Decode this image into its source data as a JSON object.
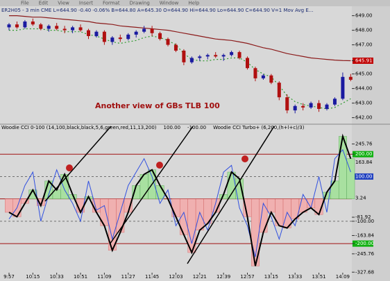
{
  "menu": [
    "File",
    "Edit",
    "View",
    "Insert",
    "Format",
    "Drawing",
    "Window",
    "Help"
  ],
  "chart_data": [
    {
      "type": "candlestick",
      "header": "ER2H05 - 3 min  CME  L=644.90  -0.40  -0.06%  B=644.80  A=645.30  O=644.90  Hi=644.90  Lo=644.90  C=644.90  V=1   Mov Avg E...",
      "annotation": "Another view of GBs TLB 100",
      "up_color": "#1a1aa0",
      "down_color": "#b01010",
      "ylim": [
        641.6,
        649.6
      ],
      "yticks": [
        {
          "value": 649,
          "label": "649.00"
        },
        {
          "value": 648,
          "label": "648.00"
        },
        {
          "value": 647,
          "label": "647.00"
        },
        {
          "value": 645.91,
          "label": "645.91",
          "highlight": "#c00000"
        },
        {
          "value": 645,
          "label": "645.00"
        },
        {
          "value": 644,
          "label": "644.00"
        },
        {
          "value": 643,
          "label": "643.00"
        },
        {
          "value": 642,
          "label": "642.00"
        }
      ],
      "ohlc": [
        [
          648.2,
          648.5,
          648.0,
          648.4
        ],
        [
          648.4,
          648.6,
          648.1,
          648.2
        ],
        [
          648.2,
          648.7,
          648.1,
          648.6
        ],
        [
          648.6,
          648.8,
          648.3,
          648.4
        ],
        [
          648.4,
          648.5,
          648.0,
          648.1
        ],
        [
          648.1,
          648.4,
          647.9,
          648.3
        ],
        [
          648.3,
          648.5,
          648.0,
          648.1
        ],
        [
          648.1,
          648.3,
          647.8,
          648.0
        ],
        [
          648.0,
          648.3,
          647.8,
          648.2
        ],
        [
          648.2,
          648.4,
          647.9,
          648.0
        ],
        [
          648.0,
          648.1,
          647.4,
          647.6
        ],
        [
          647.6,
          648.0,
          647.5,
          647.9
        ],
        [
          647.9,
          648.0,
          647.0,
          647.2
        ],
        [
          647.2,
          647.6,
          647.0,
          647.5
        ],
        [
          647.5,
          647.7,
          647.2,
          647.4
        ],
        [
          647.4,
          647.8,
          647.3,
          647.7
        ],
        [
          647.7,
          648.0,
          647.5,
          647.9
        ],
        [
          647.9,
          648.3,
          647.8,
          648.1
        ],
        [
          648.1,
          648.3,
          647.6,
          647.8
        ],
        [
          647.8,
          647.9,
          647.3,
          647.4
        ],
        [
          647.4,
          647.5,
          646.9,
          647.0
        ],
        [
          647.0,
          647.1,
          646.5,
          646.6
        ],
        [
          646.6,
          646.7,
          645.6,
          645.8
        ],
        [
          645.8,
          646.2,
          645.7,
          646.1
        ],
        [
          646.1,
          646.3,
          645.9,
          646.2
        ],
        [
          646.2,
          646.4,
          646.0,
          646.3
        ],
        [
          646.3,
          646.5,
          646.1,
          646.2
        ],
        [
          646.2,
          646.4,
          645.9,
          646.3
        ],
        [
          646.3,
          646.6,
          646.2,
          646.5
        ],
        [
          646.5,
          646.6,
          646.0,
          646.1
        ],
        [
          646.1,
          646.2,
          645.3,
          645.4
        ],
        [
          645.4,
          645.5,
          644.5,
          644.7
        ],
        [
          644.7,
          645.0,
          644.6,
          644.9
        ],
        [
          644.9,
          645.0,
          644.3,
          644.4
        ],
        [
          644.4,
          644.5,
          643.2,
          643.4
        ],
        [
          643.4,
          643.6,
          642.3,
          642.5
        ],
        [
          642.5,
          642.9,
          642.3,
          642.8
        ],
        [
          642.8,
          643.0,
          642.5,
          642.7
        ],
        [
          642.7,
          643.1,
          642.6,
          643.0
        ],
        [
          643.0,
          643.2,
          642.4,
          642.6
        ],
        [
          642.6,
          643.0,
          642.5,
          642.9
        ],
        [
          642.9,
          643.4,
          642.8,
          643.3
        ],
        [
          643.3,
          645.1,
          643.2,
          644.8
        ],
        [
          644.8,
          645.0,
          644.5,
          644.6
        ]
      ],
      "lines": [
        {
          "color": "#8b1a1a",
          "dash": "",
          "values": [
            649.0,
            649.0,
            648.95,
            648.9,
            648.9,
            648.85,
            648.8,
            648.75,
            648.7,
            648.65,
            648.6,
            648.5,
            648.45,
            648.4,
            648.3,
            648.25,
            648.2,
            648.15,
            648.1,
            648.05,
            648.0,
            647.9,
            647.8,
            647.7,
            647.6,
            647.5,
            647.4,
            647.35,
            647.3,
            647.2,
            647.1,
            646.95,
            646.8,
            646.7,
            646.55,
            646.4,
            646.3,
            646.2,
            646.1,
            646.05,
            646.0,
            645.95,
            645.92,
            645.91
          ]
        },
        {
          "color": "#2e9a2e",
          "dash": "2 3",
          "values": [
            648.0,
            648.0,
            648.1,
            648.1,
            648.1,
            648.0,
            648.0,
            647.9,
            647.9,
            647.9,
            647.7,
            647.6,
            647.4,
            647.2,
            647.1,
            647.2,
            647.3,
            647.5,
            647.6,
            647.5,
            647.3,
            647.0,
            646.4,
            646.0,
            645.9,
            645.9,
            646.0,
            646.0,
            646.1,
            646.1,
            645.8,
            645.3,
            645.0,
            644.8,
            644.2,
            643.5,
            643.1,
            642.9,
            642.8,
            642.7,
            642.6,
            642.7,
            643.0,
            643.3
          ]
        }
      ]
    },
    {
      "type": "line",
      "header": [
        {
          "text": "Woodie CCI 0-100  (14,100,black,black,5,6,green,red,11,13,200)",
          "color": "#000000"
        },
        {
          "text": "100.00",
          "color": "#000000"
        },
        {
          "text": "-100.00",
          "color": "#000000"
        },
        {
          "text": "Woodie CCI Turbo+  (6,200,(h+l+c)/3)",
          "color": "#000000"
        }
      ],
      "categories": [
        "9:57",
        null,
        null,
        "10:15",
        null,
        null,
        "10:33",
        null,
        null,
        "10:51",
        null,
        null,
        "11:09",
        null,
        null,
        "11:27",
        null,
        null,
        "11:45",
        null,
        null,
        "12:03",
        null,
        null,
        "12:21",
        null,
        null,
        "12:39",
        null,
        null,
        "12:57",
        null,
        null,
        "13:15",
        null,
        null,
        "13:33",
        null,
        null,
        "13:51",
        null,
        null,
        "14:09",
        null
      ],
      "ylim": [
        -330,
        300
      ],
      "yticks": [
        245.76,
        {
          "value": 200,
          "label": "200.00",
          "highlight": "#10b010",
          "line": "#a01010"
        },
        163.84,
        {
          "value": 100,
          "label": "100.00",
          "highlight": "#2040c0",
          "line": "#707070"
        },
        3.24,
        -81.92,
        {
          "value": -100,
          "label": "-100.00",
          "line": "#707070"
        },
        -163.84,
        {
          "value": -200,
          "label": "-200.00",
          "highlight": "#10b010",
          "line": "#a01010"
        },
        -245.76,
        -327.68
      ],
      "hist_up": "#a8e0a0",
      "hist_down": "#f0b0b0",
      "series": [
        {
          "color": "#000000",
          "width": 2,
          "values": [
            -60,
            -80,
            -20,
            40,
            -30,
            80,
            40,
            110,
            20,
            -60,
            10,
            -60,
            -120,
            -230,
            -150,
            -60,
            60,
            110,
            130,
            60,
            0,
            -80,
            -160,
            -240,
            -140,
            -110,
            -60,
            20,
            120,
            90,
            -80,
            -300,
            -150,
            -60,
            -120,
            -130,
            -90,
            -60,
            -40,
            -70,
            30,
            80,
            280,
            180
          ]
        },
        {
          "color": "#3050e0",
          "width": 1,
          "values": [
            -90,
            -40,
            60,
            120,
            -100,
            20,
            130,
            40,
            -20,
            -100,
            80,
            -50,
            -30,
            -180,
            -60,
            60,
            120,
            180,
            100,
            -20,
            40,
            -120,
            -60,
            -200,
            -60,
            -140,
            -20,
            120,
            150,
            -40,
            -120,
            -260,
            -20,
            -80,
            -180,
            -60,
            -120,
            20,
            -40,
            100,
            -60,
            180,
            220,
            120
          ]
        }
      ]
    }
  ]
}
